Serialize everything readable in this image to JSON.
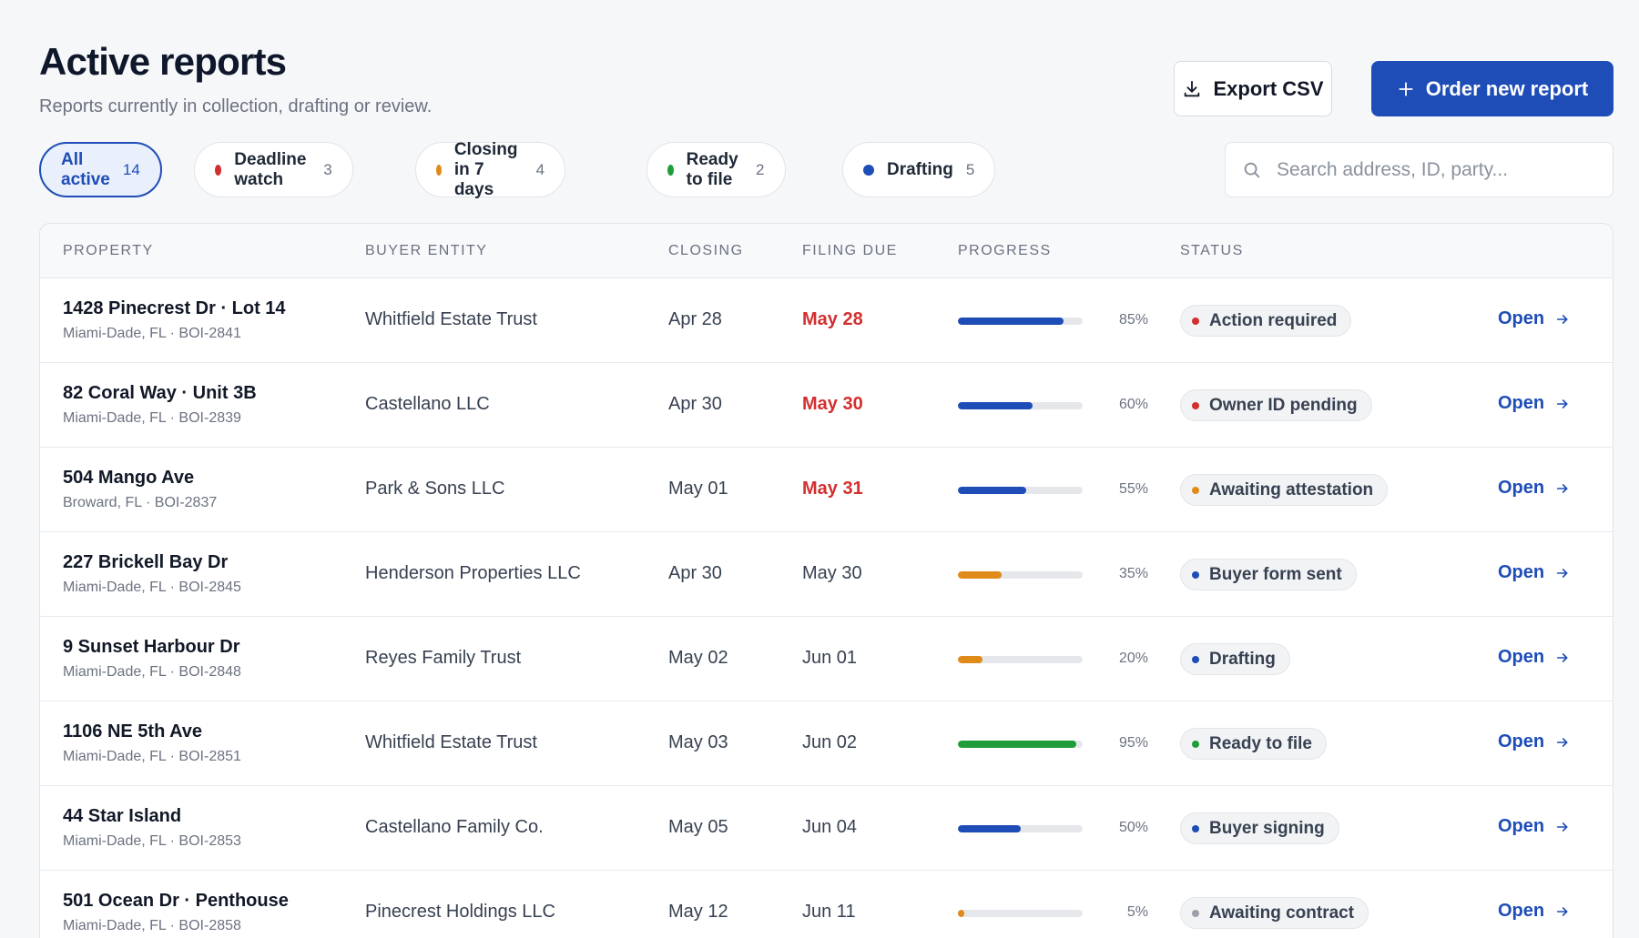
{
  "header": {
    "title": "Active reports",
    "subtitle": "Reports currently in collection, drafting or review.",
    "export_label": "Export CSV",
    "order_label": "Order new report"
  },
  "filters": [
    {
      "label": "All active",
      "count": "14",
      "dot_color": "",
      "active": true
    },
    {
      "label": "Deadline watch",
      "count": "3",
      "dot_color": "#d32f2f",
      "active": false
    },
    {
      "label": "Closing in 7 days",
      "count": "4",
      "dot_color": "#e08a1a",
      "active": false
    },
    {
      "label": "Ready to file",
      "count": "2",
      "dot_color": "#1f9d3a",
      "active": false
    },
    {
      "label": "Drafting",
      "count": "5",
      "dot_color": "#1e4db7",
      "active": false
    }
  ],
  "search": {
    "placeholder": "Search address, ID, party..."
  },
  "columns": {
    "property": "PROPERTY",
    "buyer": "BUYER ENTITY",
    "closing": "CLOSING",
    "filing_due": "FILING DUE",
    "progress": "PROGRESS",
    "status": "STATUS"
  },
  "open_label": "Open",
  "rows": [
    {
      "name": "1428 Pinecrest Dr · Lot 14",
      "sub": "Miami-Dade, FL · BOI-2841",
      "buyer": "Whitfield Estate Trust",
      "closing": "Apr 28",
      "filing": "May 28",
      "urgent": true,
      "progress": 85,
      "pct": "85%",
      "bar_color": "#1e4db7",
      "status": "Action required",
      "status_color": "#d32f2f"
    },
    {
      "name": "82 Coral Way · Unit 3B",
      "sub": "Miami-Dade, FL · BOI-2839",
      "buyer": "Castellano LLC",
      "closing": "Apr 30",
      "filing": "May 30",
      "urgent": true,
      "progress": 60,
      "pct": "60%",
      "bar_color": "#1e4db7",
      "status": "Owner ID pending",
      "status_color": "#d32f2f"
    },
    {
      "name": "504 Mango Ave",
      "sub": "Broward, FL · BOI-2837",
      "buyer": "Park & Sons LLC",
      "closing": "May 01",
      "filing": "May 31",
      "urgent": true,
      "progress": 55,
      "pct": "55%",
      "bar_color": "#1e4db7",
      "status": "Awaiting attestation",
      "status_color": "#e08a1a"
    },
    {
      "name": "227 Brickell Bay Dr",
      "sub": "Miami-Dade, FL · BOI-2845",
      "buyer": "Henderson Properties LLC",
      "closing": "Apr 30",
      "filing": "May 30",
      "urgent": false,
      "progress": 35,
      "pct": "35%",
      "bar_color": "#e08a1a",
      "status": "Buyer form sent",
      "status_color": "#1e4db7"
    },
    {
      "name": "9 Sunset Harbour Dr",
      "sub": "Miami-Dade, FL · BOI-2848",
      "buyer": "Reyes Family Trust",
      "closing": "May 02",
      "filing": "Jun 01",
      "urgent": false,
      "progress": 20,
      "pct": "20%",
      "bar_color": "#e08a1a",
      "status": "Drafting",
      "status_color": "#1e4db7"
    },
    {
      "name": "1106 NE 5th Ave",
      "sub": "Miami-Dade, FL · BOI-2851",
      "buyer": "Whitfield Estate Trust",
      "closing": "May 03",
      "filing": "Jun 02",
      "urgent": false,
      "progress": 95,
      "pct": "95%",
      "bar_color": "#1f9d3a",
      "status": "Ready to file",
      "status_color": "#1f9d3a"
    },
    {
      "name": "44 Star Island",
      "sub": "Miami-Dade, FL · BOI-2853",
      "buyer": "Castellano Family Co.",
      "closing": "May 05",
      "filing": "Jun 04",
      "urgent": false,
      "progress": 50,
      "pct": "50%",
      "bar_color": "#1e4db7",
      "status": "Buyer signing",
      "status_color": "#1e4db7"
    },
    {
      "name": "501 Ocean Dr · Penthouse",
      "sub": "Miami-Dade, FL · BOI-2858",
      "buyer": "Pinecrest Holdings LLC",
      "closing": "May 12",
      "filing": "Jun 11",
      "urgent": false,
      "progress": 5,
      "pct": "5%",
      "bar_color": "#e08a1a",
      "status": "Awaiting contract",
      "status_color": "#9aa0a8"
    }
  ]
}
